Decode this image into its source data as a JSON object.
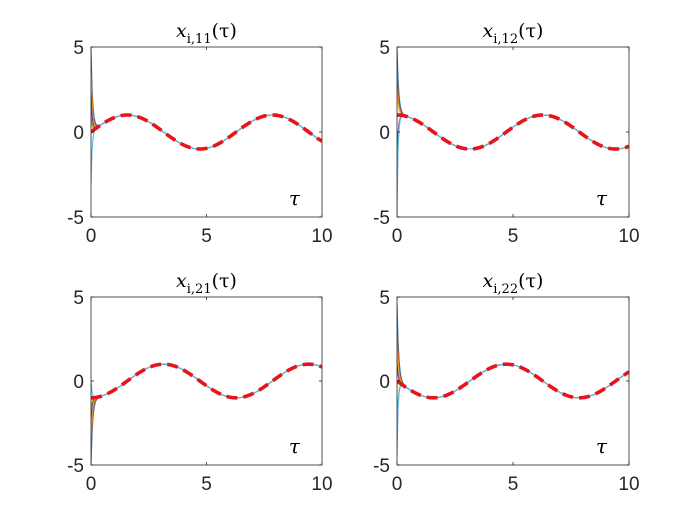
{
  "figure": {
    "background": "#ffffff"
  },
  "colors": {
    "reference": "#e8141c",
    "agents": [
      "#0072bd",
      "#d95319",
      "#edb120",
      "#7e2f8e",
      "#77ac30",
      "#4dbeee"
    ]
  },
  "chart_data": [
    {
      "type": "line",
      "title": {
        "base": "x",
        "sub": "i,11",
        "arg": "(τ)"
      },
      "annotation": "τ",
      "xlim": [
        0,
        10
      ],
      "ylim": [
        -5,
        5
      ],
      "xticks": [
        "0",
        "5",
        "10"
      ],
      "yticks": [
        "5",
        "0",
        "-5"
      ],
      "xtick_values": [
        0,
        5,
        10
      ],
      "ytick_values": [
        5,
        0,
        -5
      ],
      "reference": {
        "function": "sin",
        "omega": 1,
        "amplitude": 1,
        "style": "dashed"
      },
      "agent_initial_values": [
        4.8,
        4.2,
        3.5,
        2.2,
        1.0,
        -3.0
      ],
      "decay_rate": 14
    },
    {
      "type": "line",
      "title": {
        "base": "x",
        "sub": "i,12",
        "arg": "(τ)"
      },
      "annotation": "τ",
      "xlim": [
        0,
        10
      ],
      "ylim": [
        -5,
        5
      ],
      "xticks": [
        "0",
        "5",
        "10"
      ],
      "yticks": [
        "5",
        "0",
        "-5"
      ],
      "xtick_values": [
        0,
        5,
        10
      ],
      "ytick_values": [
        5,
        0,
        -5
      ],
      "reference": {
        "function": "cos",
        "omega": 1,
        "amplitude": 1,
        "style": "dashed"
      },
      "agent_initial_values": [
        4.9,
        3.8,
        2.5,
        -1.5,
        -3.5,
        -4.8
      ],
      "decay_rate": 14
    },
    {
      "type": "line",
      "title": {
        "base": "x",
        "sub": "i,21",
        "arg": "(τ)"
      },
      "annotation": "τ",
      "xlim": [
        0,
        10
      ],
      "ylim": [
        -5,
        5
      ],
      "xticks": [
        "0",
        "5",
        "10"
      ],
      "yticks": [
        "5",
        "0",
        "-5"
      ],
      "xtick_values": [
        0,
        5,
        10
      ],
      "ytick_values": [
        5,
        0,
        -5
      ],
      "reference": {
        "function": "-cos",
        "omega": 1,
        "amplitude": 1,
        "style": "dashed"
      },
      "agent_initial_values": [
        -4.9,
        -4.3,
        -3.2,
        -2.2,
        -1.8,
        0.0
      ],
      "decay_rate": 14
    },
    {
      "type": "line",
      "title": {
        "base": "x",
        "sub": "i,22",
        "arg": "(τ)"
      },
      "annotation": "τ",
      "xlim": [
        0,
        10
      ],
      "ylim": [
        -5,
        5
      ],
      "xticks": [
        "0",
        "5",
        "10"
      ],
      "yticks": [
        "5",
        "0",
        "-5"
      ],
      "xtick_values": [
        0,
        5,
        10
      ],
      "ytick_values": [
        5,
        0,
        -5
      ],
      "reference": {
        "function": "-sin",
        "omega": 1,
        "amplitude": 1,
        "style": "dashed"
      },
      "agent_initial_values": [
        4.6,
        3.8,
        2.2,
        1.0,
        -3.0,
        -4.5
      ],
      "decay_rate": 14
    }
  ]
}
